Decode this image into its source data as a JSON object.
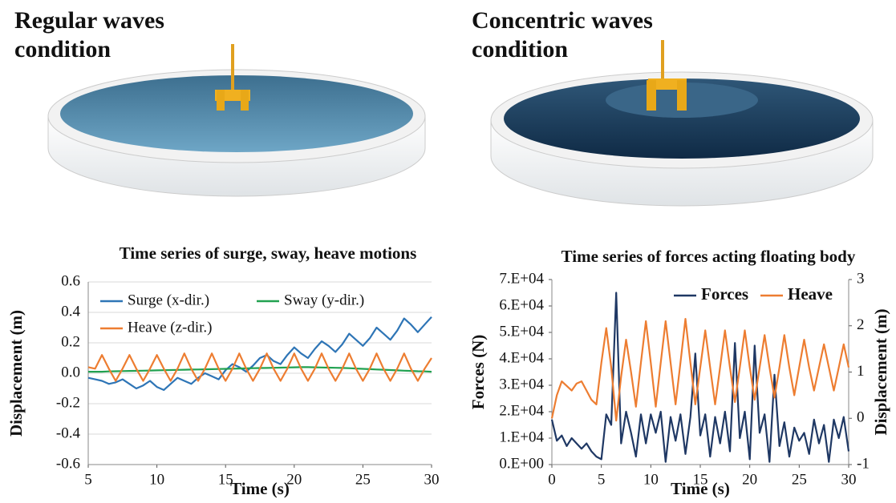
{
  "panels": [
    {
      "heading": "Regular waves condition"
    },
    {
      "heading": "Concentric waves condition"
    }
  ],
  "chart_data": [
    {
      "type": "line",
      "title": "Time series of surge, sway, heave motions",
      "xlabel": "Time (s)",
      "ylabel": "Displacement (m)",
      "x": [
        5,
        5.5,
        6,
        6.5,
        7,
        7.5,
        8,
        8.5,
        9,
        9.5,
        10,
        10.5,
        11,
        11.5,
        12,
        12.5,
        13,
        13.5,
        14,
        14.5,
        15,
        15.5,
        16,
        16.5,
        17,
        17.5,
        18,
        18.5,
        19,
        19.5,
        20,
        20.5,
        21,
        21.5,
        22,
        22.5,
        23,
        23.5,
        24,
        24.5,
        25,
        25.5,
        26,
        26.5,
        27,
        27.5,
        28,
        28.5,
        29,
        29.5,
        30
      ],
      "series": [
        {
          "name": "Surge (x-dir.)",
          "color": "#2e75b6",
          "values": [
            -0.03,
            -0.04,
            -0.05,
            -0.07,
            -0.06,
            -0.04,
            -0.07,
            -0.1,
            -0.08,
            -0.05,
            -0.09,
            -0.11,
            -0.07,
            -0.03,
            -0.05,
            -0.07,
            -0.03,
            0.0,
            -0.02,
            -0.04,
            0.02,
            0.06,
            0.04,
            0.01,
            0.05,
            0.1,
            0.12,
            0.08,
            0.06,
            0.12,
            0.17,
            0.13,
            0.1,
            0.16,
            0.21,
            0.18,
            0.14,
            0.19,
            0.26,
            0.22,
            0.18,
            0.23,
            0.3,
            0.26,
            0.22,
            0.28,
            0.36,
            0.32,
            0.27,
            0.32,
            0.37
          ]
        },
        {
          "name": "Sway (y-dir.)",
          "color": "#21a150",
          "values": [
            0.01,
            0.01,
            0.01,
            0.012,
            0.013,
            0.014,
            0.015,
            0.016,
            0.017,
            0.018,
            0.019,
            0.02,
            0.021,
            0.022,
            0.023,
            0.024,
            0.025,
            0.026,
            0.027,
            0.028,
            0.029,
            0.03,
            0.031,
            0.032,
            0.033,
            0.034,
            0.035,
            0.036,
            0.037,
            0.038,
            0.039,
            0.04,
            0.04,
            0.039,
            0.038,
            0.037,
            0.036,
            0.035,
            0.033,
            0.031,
            0.029,
            0.027,
            0.025,
            0.023,
            0.021,
            0.019,
            0.017,
            0.015,
            0.013,
            0.012,
            0.01
          ]
        },
        {
          "name": "Heave (z-dir.)",
          "color": "#ed7d31",
          "values": [
            0.04,
            0.03,
            0.12,
            0.03,
            -0.05,
            0.03,
            0.12,
            0.03,
            -0.05,
            0.03,
            0.12,
            0.03,
            -0.05,
            0.03,
            0.13,
            0.03,
            -0.05,
            0.03,
            0.13,
            0.03,
            -0.05,
            0.03,
            0.13,
            0.03,
            -0.05,
            0.03,
            0.13,
            0.03,
            -0.05,
            0.03,
            0.13,
            0.03,
            -0.05,
            0.03,
            0.13,
            0.03,
            -0.05,
            0.03,
            0.13,
            0.03,
            -0.05,
            0.03,
            0.13,
            0.03,
            -0.05,
            0.03,
            0.13,
            0.03,
            -0.05,
            0.03,
            0.1
          ]
        }
      ],
      "xlim": [
        5,
        30
      ],
      "xticks": [
        5,
        10,
        15,
        20,
        25,
        30
      ],
      "ylim": [
        -0.6,
        0.6
      ],
      "yticks": [
        0.6,
        0.4,
        0.2,
        {
          "value": 0,
          "label": "0.0"
        },
        -0.2,
        -0.4,
        -0.6
      ],
      "grid": true,
      "legend": "upper left"
    },
    {
      "type": "line",
      "title": "Time series of forces acting floating body",
      "xlabel": "Time (s)",
      "ylabel": "Forces (N)",
      "y2label": "Displacement (m)",
      "x": [
        0,
        0.5,
        1,
        1.5,
        2,
        2.5,
        3,
        3.5,
        4,
        4.5,
        5,
        5.5,
        6,
        6.5,
        7,
        7.5,
        8,
        8.5,
        9,
        9.5,
        10,
        10.5,
        11,
        11.5,
        12,
        12.5,
        13,
        13.5,
        14,
        14.5,
        15,
        15.5,
        16,
        16.5,
        17,
        17.5,
        18,
        18.5,
        19,
        19.5,
        20,
        20.5,
        21,
        21.5,
        22,
        22.5,
        23,
        23.5,
        24,
        24.5,
        25,
        25.5,
        26,
        26.5,
        27,
        27.5,
        28,
        28.5,
        29,
        29.5,
        30
      ],
      "series": [
        {
          "name": "Forces",
          "color": "#1f3864",
          "values": [
            17000,
            9000,
            11000,
            7000,
            10000,
            8000,
            6000,
            8000,
            5000,
            3000,
            2000,
            19000,
            15000,
            65000,
            8000,
            20000,
            12000,
            3000,
            19000,
            8000,
            19000,
            12000,
            20000,
            1000,
            18000,
            9000,
            19000,
            4000,
            18000,
            42000,
            11000,
            19000,
            3000,
            18000,
            8000,
            20000,
            5000,
            46000,
            10000,
            20000,
            2000,
            45000,
            12000,
            19000,
            1000,
            34000,
            7000,
            16000,
            3000,
            14000,
            9000,
            12000,
            4000,
            17000,
            8000,
            15000,
            1000,
            17000,
            10000,
            18000,
            5000
          ]
        },
        {
          "name": "Heave",
          "color": "#ed7d31",
          "axis": "y2",
          "values": [
            0,
            0.5,
            0.8,
            0.7,
            0.6,
            0.75,
            0.8,
            0.6,
            0.4,
            0.3,
            1.2,
            1.95,
            1.1,
            -0.05,
            0.9,
            1.7,
            1.0,
            0.25,
            1.2,
            2.1,
            1.2,
            0.25,
            1.2,
            2.1,
            1.2,
            0.3,
            1.2,
            2.15,
            1.2,
            0.3,
            1.1,
            1.9,
            1.1,
            0.3,
            1.1,
            1.9,
            1.1,
            0.35,
            1.1,
            1.9,
            1.1,
            0.4,
            1.1,
            1.8,
            1.1,
            0.45,
            1.1,
            1.8,
            1.1,
            0.5,
            1.1,
            1.7,
            1.1,
            0.6,
            1.1,
            1.6,
            1.1,
            0.6,
            1.1,
            1.6,
            1.1
          ]
        }
      ],
      "xlim": [
        0,
        30
      ],
      "xticks": [
        0,
        5,
        10,
        15,
        20,
        25,
        30
      ],
      "ylim": [
        0,
        70000
      ],
      "yticks": [
        {
          "value": 0,
          "label": "0.E+00"
        },
        {
          "value": 10000,
          "label": "1.E+04"
        },
        {
          "value": 20000,
          "label": "2.E+04"
        },
        {
          "value": 30000,
          "label": "3.E+04"
        },
        {
          "value": 40000,
          "label": "4.E+04"
        },
        {
          "value": 50000,
          "label": "5.E+04"
        },
        {
          "value": 60000,
          "label": "6.E+04"
        },
        {
          "value": 70000,
          "label": "7.E+04"
        }
      ],
      "y2lim": [
        -1,
        3
      ],
      "y2ticks": [
        -1,
        0,
        1,
        2,
        3
      ],
      "grid": false,
      "legend": "upper right"
    }
  ]
}
